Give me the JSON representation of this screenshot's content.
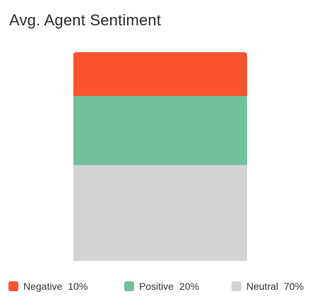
{
  "title": "Avg. Agent Sentiment",
  "chart_data": {
    "type": "bar",
    "title": "Avg. Agent Sentiment",
    "stacked": true,
    "categories": [
      ""
    ],
    "series": [
      {
        "name": "Negative",
        "values": [
          10
        ],
        "label": "10%",
        "color": "#fa532e"
      },
      {
        "name": "Positive",
        "values": [
          20
        ],
        "label": "20%",
        "color": "#72bf9c"
      },
      {
        "name": "Neutral",
        "values": [
          70
        ],
        "label": "70%",
        "color": "#d4d2d4"
      }
    ],
    "ylim": [
      0,
      100
    ],
    "grid": false,
    "legend_position": "bottom"
  }
}
